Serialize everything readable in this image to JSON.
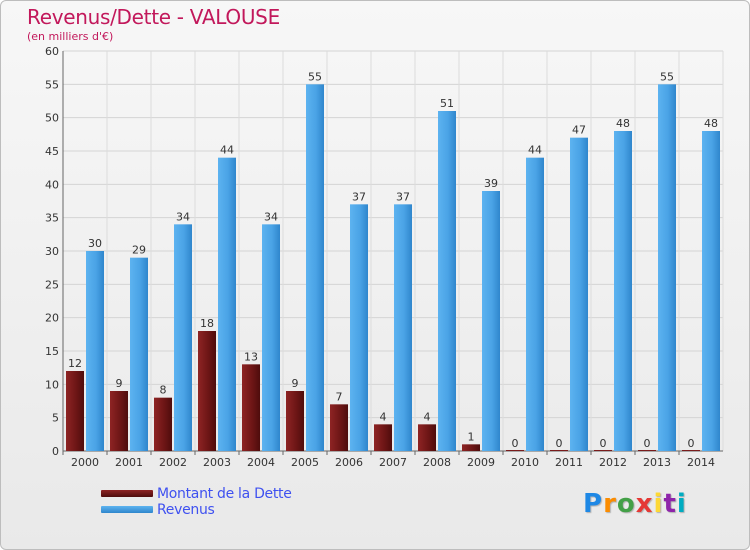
{
  "title": "Revenus/Dette - VALOUSE",
  "subtitle": "(en milliers d'€)",
  "logo_text": "Proxiti",
  "colors": {
    "title": "#c2185b",
    "dette": "#7a1c1c",
    "revenus": "#4aa3e6",
    "legend_text": "#3f51f0"
  },
  "chart_data": {
    "type": "bar",
    "title": "Revenus/Dette - VALOUSE",
    "subtitle": "(en milliers d'€)",
    "categories": [
      "2000",
      "2001",
      "2002",
      "2003",
      "2004",
      "2005",
      "2006",
      "2007",
      "2008",
      "2009",
      "2010",
      "2011",
      "2012",
      "2013",
      "2014"
    ],
    "series": [
      {
        "name": "Montant de la Dette",
        "values": [
          12,
          9,
          8,
          18,
          13,
          9,
          7,
          4,
          4,
          1,
          0,
          0,
          0,
          0,
          0
        ]
      },
      {
        "name": "Revenus",
        "values": [
          30,
          29,
          34,
          44,
          34,
          55,
          37,
          37,
          51,
          39,
          44,
          47,
          48,
          55,
          48
        ]
      }
    ],
    "ylim": [
      0,
      60
    ],
    "yticks": [
      0,
      5,
      10,
      15,
      20,
      25,
      30,
      35,
      40,
      45,
      50,
      55,
      60
    ],
    "grid": true,
    "legend_position": "bottom-left"
  },
  "legend": {
    "items": [
      {
        "label": "Montant de la Dette"
      },
      {
        "label": "Revenus"
      }
    ]
  }
}
